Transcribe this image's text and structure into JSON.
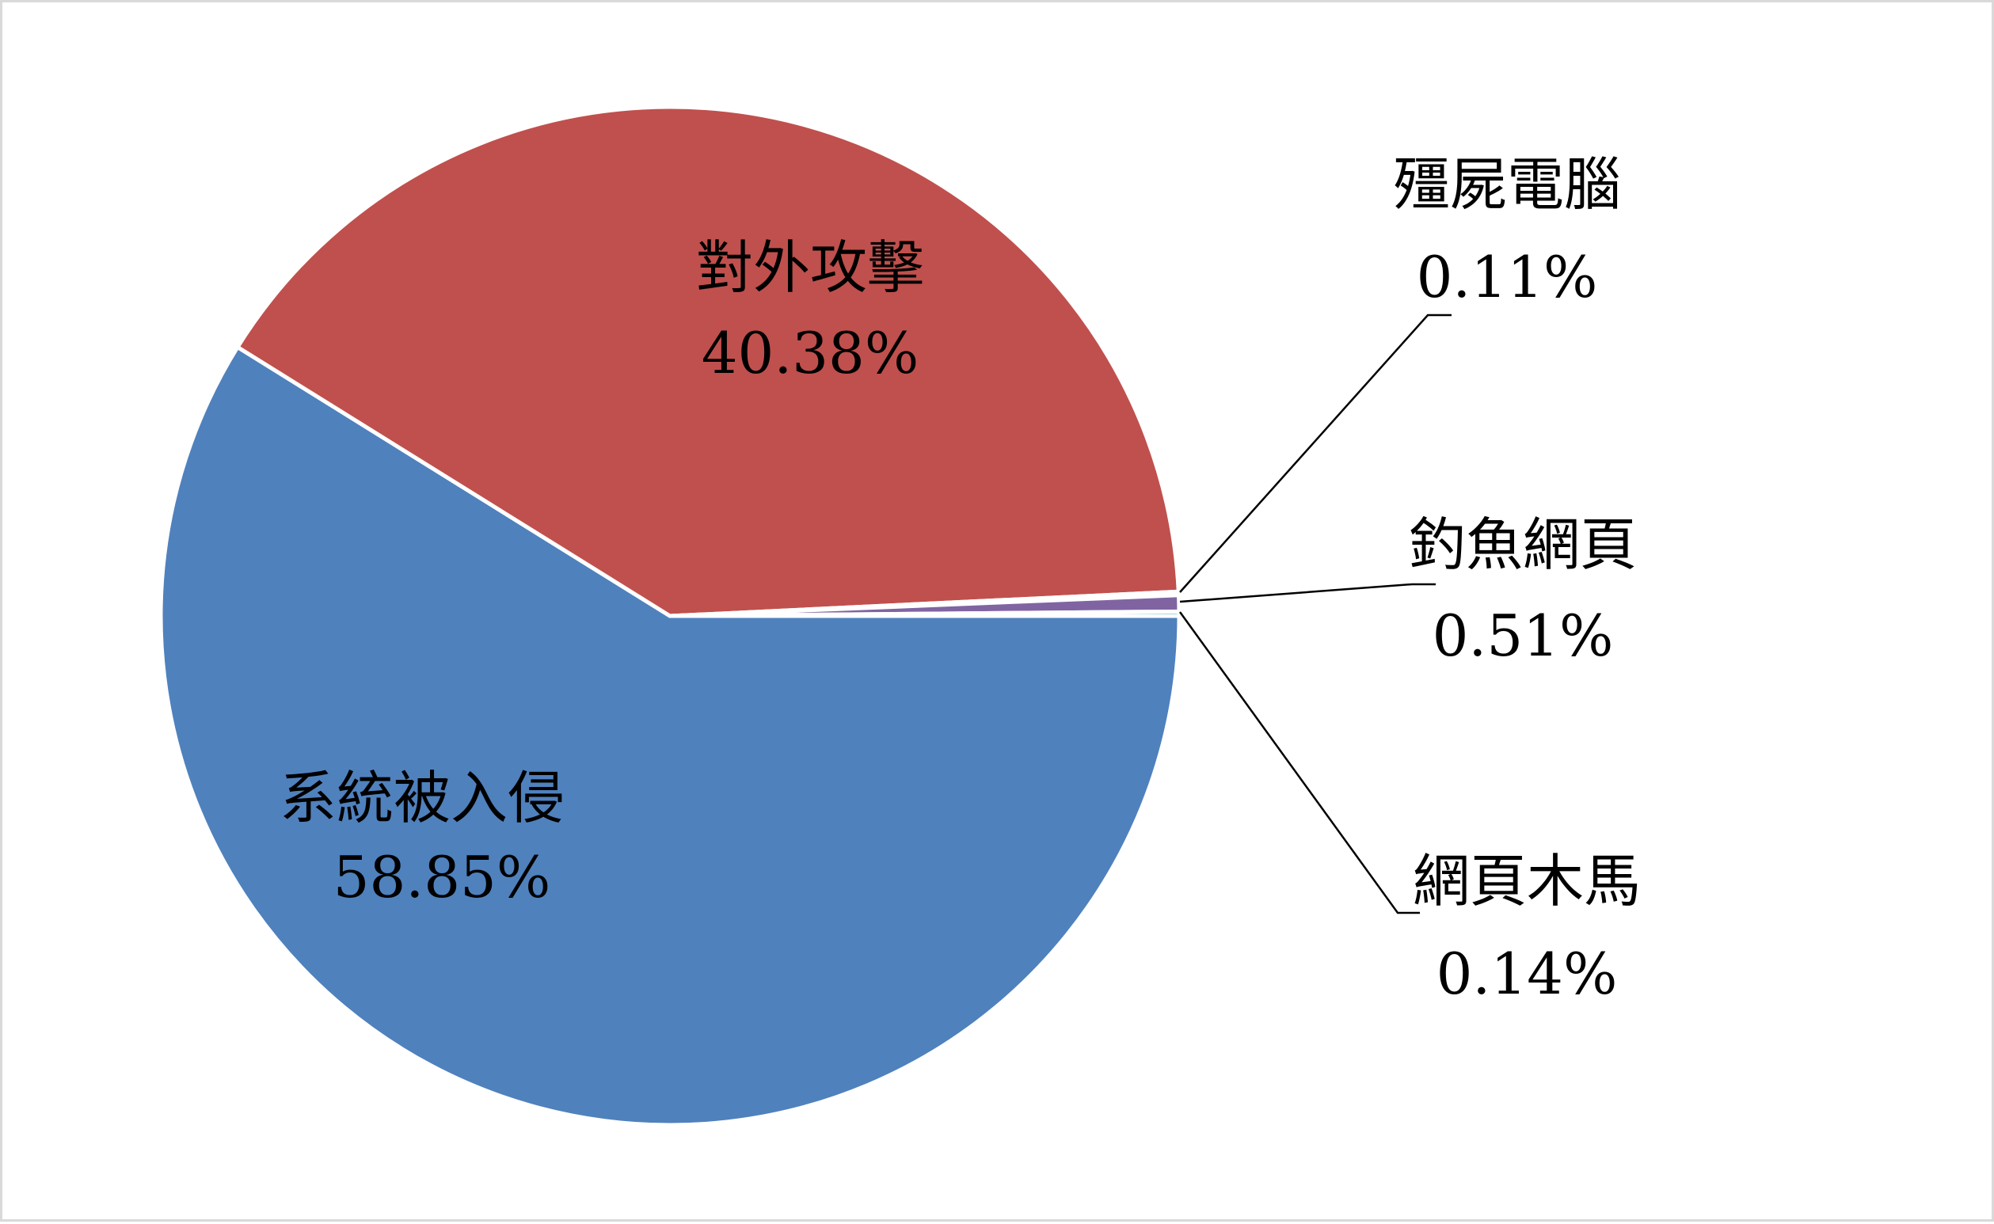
{
  "chart_data": {
    "type": "pie",
    "title": "",
    "slices": [
      {
        "name": "系統被入侵",
        "value": 58.85,
        "label": "58.85%",
        "color": "#4f81bd"
      },
      {
        "name": "對外攻擊",
        "value": 40.38,
        "label": "40.38%",
        "color": "#c0504d"
      },
      {
        "name": "殭屍電腦",
        "value": 0.11,
        "label": "0.11%",
        "color": "#9bbb59"
      },
      {
        "name": "釣魚網頁",
        "value": 0.51,
        "label": "0.51%",
        "color": "#8064a2"
      },
      {
        "name": "網頁木馬",
        "value": 0.14,
        "label": "0.14%",
        "color": "#4bacc6"
      }
    ],
    "legend": "none",
    "start_angle": "3 o'clock",
    "direction": "clockwise"
  }
}
